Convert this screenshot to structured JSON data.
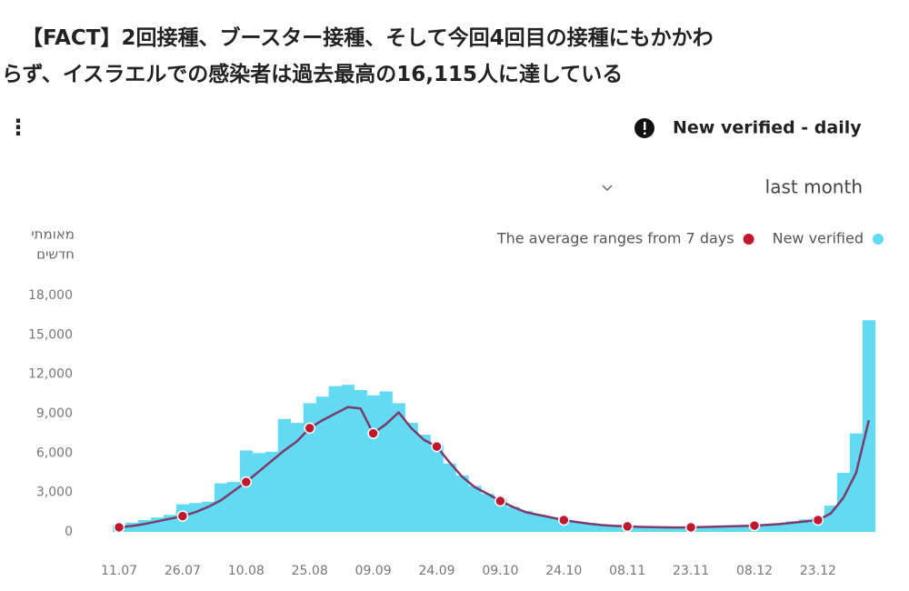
{
  "page": {
    "headline_lines": [
      "【FACT】2回接種、ブースター接種、そして今回4回目の接種にもかかわ",
      "らず、イスラエルでの感染者は過去最高の16,115人に達している"
    ],
    "menu_icon": "⋮",
    "widget_title": "New verified - daily",
    "period": "last month"
  },
  "chart_data": {
    "type": "bar",
    "ylabel": [
      "מאומתי",
      "חדשים"
    ],
    "categories": [
      "11.07",
      null,
      null,
      null,
      null,
      "26.07",
      null,
      null,
      null,
      null,
      "10.08",
      null,
      null,
      null,
      null,
      "25.08",
      null,
      null,
      null,
      null,
      "09.09",
      null,
      null,
      null,
      null,
      "24.09",
      null,
      null,
      null,
      null,
      "09.10",
      null,
      null,
      null,
      null,
      "24.10",
      null,
      null,
      null,
      null,
      "08.11",
      null,
      null,
      null,
      null,
      "23.11",
      null,
      null,
      null,
      null,
      "08.12",
      null,
      null,
      null,
      null,
      "23.12",
      null,
      null,
      null,
      null
    ],
    "series": [
      {
        "name": "New verified",
        "type": "bar",
        "color": "#62dbf2",
        "values": [
          500,
          700,
          900,
          1100,
          1300,
          2100,
          2200,
          2300,
          3700,
          3800,
          6200,
          6000,
          6100,
          8600,
          8300,
          9800,
          10300,
          11100,
          11200,
          10800,
          10400,
          10700,
          9800,
          8300,
          7400,
          6600,
          5200,
          4300,
          3500,
          2900,
          2500,
          1900,
          1600,
          1300,
          1100,
          900,
          750,
          650,
          550,
          480,
          450,
          400,
          380,
          360,
          350,
          360,
          400,
          420,
          450,
          480,
          520,
          560,
          650,
          800,
          950,
          1100,
          2000,
          4500,
          7500,
          16115
        ]
      },
      {
        "name": "The average ranges from 7 days",
        "type": "line",
        "color": "#c0182e",
        "line_color": "#7b3b6b",
        "values": [
          350,
          450,
          600,
          800,
          1000,
          1200,
          1500,
          1900,
          2400,
          3100,
          3800,
          4600,
          5400,
          6200,
          6900,
          7900,
          8500,
          9000,
          9500,
          9400,
          7500,
          8200,
          9100,
          7900,
          7000,
          6500,
          5300,
          4200,
          3400,
          2900,
          2350,
          1900,
          1500,
          1300,
          1100,
          900,
          750,
          620,
          520,
          460,
          420,
          380,
          360,
          350,
          340,
          350,
          370,
          400,
          420,
          450,
          480,
          540,
          600,
          700,
          800,
          900,
          1400,
          2600,
          4500,
          8500
        ]
      }
    ],
    "ylim": [
      0,
      18000
    ],
    "yticks": [
      0,
      {
        "value": 3000,
        "label": "3,000"
      },
      {
        "value": 6000,
        "label": "6,000"
      },
      {
        "value": 9000,
        "label": "9,000"
      },
      {
        "value": 12000,
        "label": "12,000"
      },
      {
        "value": 15000,
        "label": "15,000"
      },
      {
        "value": 18000,
        "label": "18,000"
      }
    ],
    "grid": false
  }
}
